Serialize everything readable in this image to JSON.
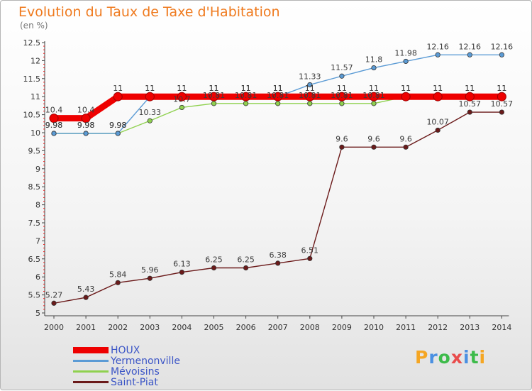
{
  "title": "Evolution du Taux de Taxe d'Habitation",
  "unit_label": "(en %)",
  "logo": "Proxiti",
  "colors": {
    "title": "#ef7a1e",
    "legend_text": "#3a54c6"
  },
  "chart_data": {
    "type": "line",
    "title": "Evolution du Taux de Taxe d'Habitation",
    "ylabel": "(en %)",
    "xlabel": "",
    "ylim": [
      5,
      12.5
    ],
    "yticks": [
      "5",
      "5.5",
      "6",
      "6.5",
      "7",
      "7.5",
      "8",
      "8.5",
      "9",
      "9.5",
      "10",
      "10.5",
      "11",
      "11.5",
      "12",
      "12.5"
    ],
    "x": [
      "2000",
      "2001",
      "2002",
      "2003",
      "2004",
      "2005",
      "2006",
      "2007",
      "2008",
      "2009",
      "2010",
      "2011",
      "2012",
      "2013",
      "2014"
    ],
    "grid": false,
    "legend_position": "bottom-left",
    "series": [
      {
        "name": "HOUX",
        "color": "#ee0000",
        "values": [
          10.4,
          10.4,
          11,
          11,
          11,
          11,
          11,
          11,
          11,
          11,
          11,
          11,
          11,
          11,
          11
        ],
        "labels": [
          "10.4",
          "10.4",
          "11",
          "11",
          "11",
          "11",
          "11",
          "11",
          "11",
          "11",
          "11",
          "11",
          "11",
          "11",
          "11"
        ]
      },
      {
        "name": "Yermenonville",
        "color": "#5b9bd5",
        "values": [
          9.98,
          9.98,
          9.98,
          11,
          11,
          11,
          11,
          11,
          11.33,
          11.57,
          11.8,
          11.98,
          12.16,
          12.16,
          12.16
        ],
        "labels": [
          "9.98",
          "9.98",
          "9.98",
          "11",
          "11",
          "11",
          "11",
          "11",
          "11.33",
          "11.57",
          "11.8",
          "11.98",
          "12.16",
          "12.16",
          "12.16"
        ]
      },
      {
        "name": "Mévoisins",
        "color": "#8fd14f",
        "values": [
          9.98,
          9.98,
          9.98,
          10.33,
          10.7,
          10.81,
          10.81,
          10.81,
          10.81,
          10.81,
          10.81,
          11,
          11,
          11,
          11
        ],
        "labels": [
          "9.98",
          "9.98",
          "9.98",
          "10.33",
          "10.7",
          "10.81",
          "10.81",
          "10.81",
          "10.81",
          "10.81",
          "10.81",
          "11",
          "11",
          "11",
          "11"
        ]
      },
      {
        "name": "Saint-Piat",
        "color": "#6b1a1a",
        "values": [
          5.27,
          5.43,
          5.84,
          5.96,
          6.13,
          6.25,
          6.25,
          6.38,
          6.51,
          9.6,
          9.6,
          9.6,
          10.07,
          10.57,
          10.57
        ],
        "labels": [
          "5.27",
          "5.43",
          "5.84",
          "5.96",
          "6.13",
          "6.25",
          "6.25",
          "6.38",
          "6.51",
          "9.6",
          "9.6",
          "9.6",
          "10.07",
          "10.57",
          "10.57"
        ]
      }
    ]
  }
}
